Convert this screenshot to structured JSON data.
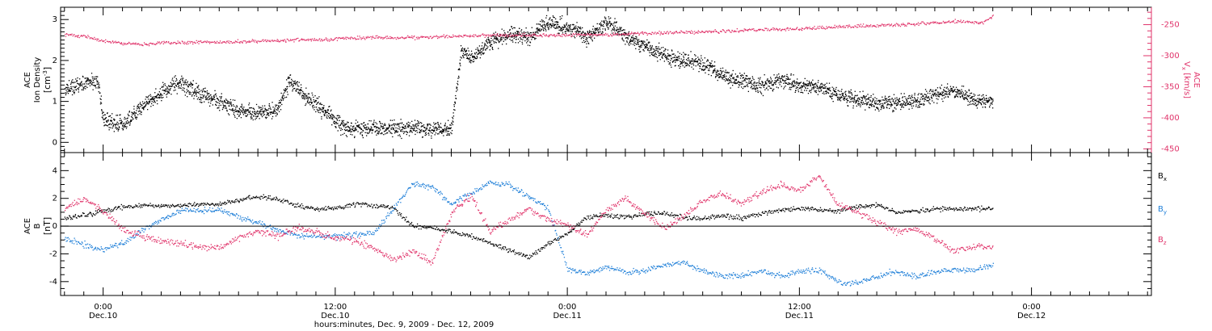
{
  "colors": {
    "black": "#000000",
    "pink": "#e0336a",
    "blue": "#1f7fd8"
  },
  "chart_data": [
    {
      "type": "scatter",
      "panel": "top",
      "left_axis_title_lines": [
        "ACE",
        "Ion Density"
      ],
      "left_axis_unit_prefix": "[cm",
      "left_axis_unit_exp": "-3",
      "left_axis_unit_suffix": "]",
      "right_axis_title_lines": [
        "ACE"
      ],
      "right_axis_var": "V",
      "right_axis_var_sub": "x",
      "right_axis_unit": "[km/s]",
      "ylim_left": [
        -0.25,
        3.3
      ],
      "yticks_left": [
        "0",
        "1",
        "2",
        "3"
      ],
      "ylim_right": [
        -456,
        -222
      ],
      "yticks_right": [
        "-450",
        "-400",
        "-350",
        "-300",
        "-250"
      ],
      "series": [
        {
          "color": "black",
          "axis": "left",
          "anchors": [
            [
              -2,
              1.3
            ],
            [
              -1,
              1.45
            ],
            [
              -0.3,
              1.5
            ],
            [
              0,
              0.55
            ],
            [
              1,
              0.45
            ],
            [
              2,
              0.9
            ],
            [
              3,
              1.25
            ],
            [
              4,
              1.45
            ],
            [
              5,
              1.2
            ],
            [
              6,
              1.0
            ],
            [
              7,
              0.75
            ],
            [
              8,
              0.75
            ],
            [
              9,
              0.8
            ],
            [
              9.6,
              1.5
            ],
            [
              10.5,
              1.1
            ],
            [
              11.5,
              0.75
            ],
            [
              12.5,
              0.35
            ],
            [
              14,
              0.35
            ],
            [
              16,
              0.35
            ],
            [
              18,
              0.35
            ],
            [
              18.5,
              2.25
            ],
            [
              19,
              2.1
            ],
            [
              20,
              2.45
            ],
            [
              21,
              2.65
            ],
            [
              22,
              2.6
            ],
            [
              23,
              2.95
            ],
            [
              24,
              2.8
            ],
            [
              24.5,
              2.75
            ],
            [
              25,
              2.55
            ],
            [
              26,
              2.95
            ],
            [
              27,
              2.6
            ],
            [
              28,
              2.35
            ],
            [
              29,
              2.1
            ],
            [
              30,
              2.0
            ],
            [
              31,
              1.95
            ],
            [
              32,
              1.65
            ],
            [
              33,
              1.5
            ],
            [
              34,
              1.4
            ],
            [
              35,
              1.55
            ],
            [
              36,
              1.4
            ],
            [
              37,
              1.35
            ],
            [
              38,
              1.15
            ],
            [
              39,
              1.05
            ],
            [
              40,
              0.95
            ],
            [
              41,
              1.0
            ],
            [
              42,
              1.0
            ],
            [
              43,
              1.2
            ],
            [
              44,
              1.25
            ],
            [
              45,
              1.05
            ],
            [
              46,
              1.0
            ]
          ],
          "jitter": 0.28,
          "step": 0.012
        },
        {
          "color": "pink",
          "axis": "right",
          "anchors": [
            [
              -2,
              -266
            ],
            [
              -1,
              -268
            ],
            [
              0,
              -276
            ],
            [
              1,
              -279
            ],
            [
              2,
              -281
            ],
            [
              4,
              -278
            ],
            [
              6,
              -277
            ],
            [
              8,
              -276
            ],
            [
              10,
              -274
            ],
            [
              12,
              -272
            ],
            [
              14,
              -270
            ],
            [
              16,
              -270
            ],
            [
              18,
              -268
            ],
            [
              20,
              -266
            ],
            [
              22,
              -266
            ],
            [
              24,
              -266
            ],
            [
              26,
              -265
            ],
            [
              28,
              -263
            ],
            [
              30,
              -262
            ],
            [
              32,
              -260
            ],
            [
              34,
              -257
            ],
            [
              36,
              -256
            ],
            [
              38,
              -253
            ],
            [
              40,
              -251
            ],
            [
              42,
              -248
            ],
            [
              44,
              -244
            ],
            [
              45.5,
              -246
            ],
            [
              46,
              -236
            ]
          ],
          "jitter": 4,
          "step": 0.04
        }
      ]
    },
    {
      "type": "scatter",
      "panel": "bottom",
      "left_axis_title_lines": [
        "ACE"
      ],
      "left_axis_var": "B",
      "left_axis_unit": "[nT]",
      "ylim": [
        -5,
        5.3
      ],
      "yticks": [
        "-4",
        "-2",
        "0",
        "2",
        "4"
      ],
      "zero_line": true,
      "legend_placement": "right",
      "series": [
        {
          "name": "B",
          "name_sub": "x",
          "color": "black",
          "anchors": [
            [
              -2,
              0.6
            ],
            [
              -1,
              0.8
            ],
            [
              0,
              1.1
            ],
            [
              1,
              1.4
            ],
            [
              2,
              1.5
            ],
            [
              3,
              1.5
            ],
            [
              4,
              1.5
            ],
            [
              5,
              1.6
            ],
            [
              6,
              1.6
            ],
            [
              7,
              1.9
            ],
            [
              8,
              2.2
            ],
            [
              9,
              2.0
            ],
            [
              10,
              1.5
            ],
            [
              11,
              1.3
            ],
            [
              12,
              1.3
            ],
            [
              13,
              1.6
            ],
            [
              14,
              1.5
            ],
            [
              15,
              1.4
            ],
            [
              16,
              0.0
            ],
            [
              17,
              -0.1
            ],
            [
              18,
              -0.4
            ],
            [
              19,
              -0.7
            ],
            [
              20,
              -1.2
            ],
            [
              21,
              -1.7
            ],
            [
              22,
              -2.2
            ],
            [
              23,
              -1.2
            ],
            [
              24,
              -0.5
            ],
            [
              25,
              0.7
            ],
            [
              26,
              0.8
            ],
            [
              27,
              0.7
            ],
            [
              28,
              0.9
            ],
            [
              29,
              1.0
            ],
            [
              30,
              0.6
            ],
            [
              31,
              0.6
            ],
            [
              32,
              0.8
            ],
            [
              33,
              0.6
            ],
            [
              34,
              0.9
            ],
            [
              35,
              1.2
            ],
            [
              36,
              1.3
            ],
            [
              37,
              1.2
            ],
            [
              38,
              1.1
            ],
            [
              39,
              1.4
            ],
            [
              40,
              1.6
            ],
            [
              41,
              1.0
            ],
            [
              42,
              1.1
            ],
            [
              43,
              1.3
            ],
            [
              44,
              1.2
            ],
            [
              45,
              1.3
            ],
            [
              46,
              1.3
            ]
          ],
          "jitter": 0.25,
          "step": 0.035
        },
        {
          "name": "B",
          "name_sub": "y",
          "color": "blue",
          "anchors": [
            [
              -2,
              -0.9
            ],
            [
              -1,
              -1.3
            ],
            [
              0,
              -1.7
            ],
            [
              1,
              -1.2
            ],
            [
              2,
              -0.3
            ],
            [
              3,
              0.5
            ],
            [
              4,
              1.2
            ],
            [
              5,
              1.1
            ],
            [
              6,
              1.2
            ],
            [
              7,
              0.7
            ],
            [
              8,
              0.3
            ],
            [
              9,
              -0.3
            ],
            [
              10,
              -0.6
            ],
            [
              11,
              -0.7
            ],
            [
              12,
              -0.7
            ],
            [
              13,
              -0.6
            ],
            [
              14,
              -0.4
            ],
            [
              15,
              1.3
            ],
            [
              16,
              3.1
            ],
            [
              17,
              2.8
            ],
            [
              18,
              1.6
            ],
            [
              19,
              2.4
            ],
            [
              20,
              3.2
            ],
            [
              21,
              3.0
            ],
            [
              22,
              2.1
            ],
            [
              23,
              1.3
            ],
            [
              24,
              -3.1
            ],
            [
              25,
              -3.4
            ],
            [
              26,
              -2.9
            ],
            [
              27,
              -3.3
            ],
            [
              28,
              -3.2
            ],
            [
              29,
              -2.8
            ],
            [
              30,
              -2.6
            ],
            [
              31,
              -3.2
            ],
            [
              32,
              -3.6
            ],
            [
              33,
              -3.5
            ],
            [
              34,
              -3.2
            ],
            [
              35,
              -3.6
            ],
            [
              36,
              -3.3
            ],
            [
              37,
              -3.1
            ],
            [
              38,
              -4.0
            ],
            [
              39,
              -4.1
            ],
            [
              40,
              -3.6
            ],
            [
              41,
              -3.2
            ],
            [
              42,
              -3.6
            ],
            [
              43,
              -3.3
            ],
            [
              44,
              -3.1
            ],
            [
              45,
              -3.2
            ],
            [
              46,
              -2.7
            ]
          ],
          "jitter": 0.3,
          "step": 0.035
        },
        {
          "name": "B",
          "name_sub": "z",
          "color": "pink",
          "anchors": [
            [
              -2,
              1.3
            ],
            [
              -1,
              2.0
            ],
            [
              0,
              1.1
            ],
            [
              1,
              -0.2
            ],
            [
              2,
              -0.7
            ],
            [
              3,
              -1.1
            ],
            [
              4,
              -1.2
            ],
            [
              5,
              -1.4
            ],
            [
              6,
              -1.6
            ],
            [
              7,
              -0.8
            ],
            [
              8,
              -0.3
            ],
            [
              9,
              -0.7
            ],
            [
              10,
              -0.1
            ],
            [
              11,
              -0.4
            ],
            [
              12,
              -0.8
            ],
            [
              13,
              -1.0
            ],
            [
              14,
              -1.6
            ],
            [
              15,
              -2.4
            ],
            [
              16,
              -1.8
            ],
            [
              17,
              -2.6
            ],
            [
              18,
              1.0
            ],
            [
              19,
              2.2
            ],
            [
              20,
              -0.4
            ],
            [
              21,
              0.5
            ],
            [
              22,
              1.3
            ],
            [
              23,
              0.5
            ],
            [
              24,
              0.1
            ],
            [
              25,
              -0.6
            ],
            [
              26,
              1.2
            ],
            [
              27,
              2.0
            ],
            [
              28,
              0.9
            ],
            [
              29,
              -0.1
            ],
            [
              30,
              0.7
            ],
            [
              31,
              1.9
            ],
            [
              32,
              2.4
            ],
            [
              33,
              1.6
            ],
            [
              34,
              2.5
            ],
            [
              35,
              3.0
            ],
            [
              36,
              2.6
            ],
            [
              37,
              3.6
            ],
            [
              38,
              1.5
            ],
            [
              39,
              1.1
            ],
            [
              40,
              0.3
            ],
            [
              41,
              -0.4
            ],
            [
              42,
              -0.2
            ],
            [
              43,
              -0.9
            ],
            [
              44,
              -1.8
            ],
            [
              45,
              -1.4
            ],
            [
              46,
              -1.6
            ]
          ],
          "jitter": 0.35,
          "step": 0.035
        }
      ]
    }
  ],
  "x_axis": {
    "title": "hours:minutes, Dec. 9, 2009 - Dec. 12, 2009",
    "xlim_hours": [
      -2.2,
      54.2
    ],
    "ticks": [
      {
        "hours": 0,
        "time": "0:00",
        "date": "Dec.10"
      },
      {
        "hours": 12,
        "time": "12:00",
        "date": "Dec.10"
      },
      {
        "hours": 24,
        "time": "0:00",
        "date": "Dec.11"
      },
      {
        "hours": 36,
        "time": "12:00",
        "date": "Dec.11"
      },
      {
        "hours": 48,
        "time": "0:00",
        "date": "Dec.12"
      }
    ]
  }
}
